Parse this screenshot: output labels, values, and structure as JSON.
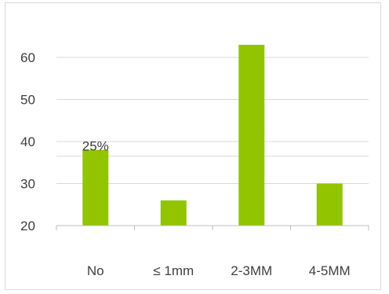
{
  "chart_data": {
    "type": "bar",
    "categories": [
      "No",
      "≤  1mm",
      "2-3MM",
      "4-5MM"
    ],
    "values": [
      38,
      26,
      63,
      30
    ],
    "ylim": [
      20,
      70
    ],
    "yticks": [
      "20",
      "30",
      "40",
      "50",
      "60"
    ],
    "data_labels": [
      "25%",
      "",
      "",
      ""
    ],
    "grid": true,
    "legend": "none",
    "bar_color": "#92c500",
    "gridline_color": "#d9d9d9",
    "text_color": "#404040"
  }
}
